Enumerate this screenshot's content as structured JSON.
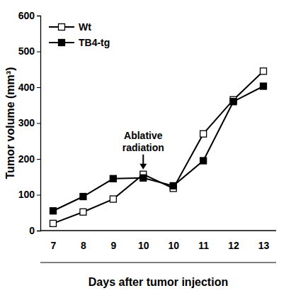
{
  "chart_data": {
    "type": "line",
    "x_label": "Days after tumor injection",
    "y_label": "Tumor volume (mm³)",
    "categories": [
      "7",
      "8",
      "9",
      "10",
      "10",
      "11",
      "12",
      "13"
    ],
    "series": [
      {
        "name": "Wt",
        "color": "#000000",
        "marker": "square-open",
        "values": [
          20,
          52,
          88,
          157,
          118,
          270,
          365,
          445
        ]
      },
      {
        "name": "TB4-tg",
        "color": "#000000",
        "marker": "square",
        "values": [
          55,
          95,
          145,
          147,
          125,
          195,
          360,
          403
        ]
      }
    ],
    "annotations": [
      {
        "text": "Ablative radiation",
        "x": 3
      }
    ],
    "ylim": [
      0,
      600
    ],
    "yticks": [
      0,
      100,
      200,
      300,
      400,
      500,
      600
    ],
    "legend": "upper left",
    "grid": false
  }
}
